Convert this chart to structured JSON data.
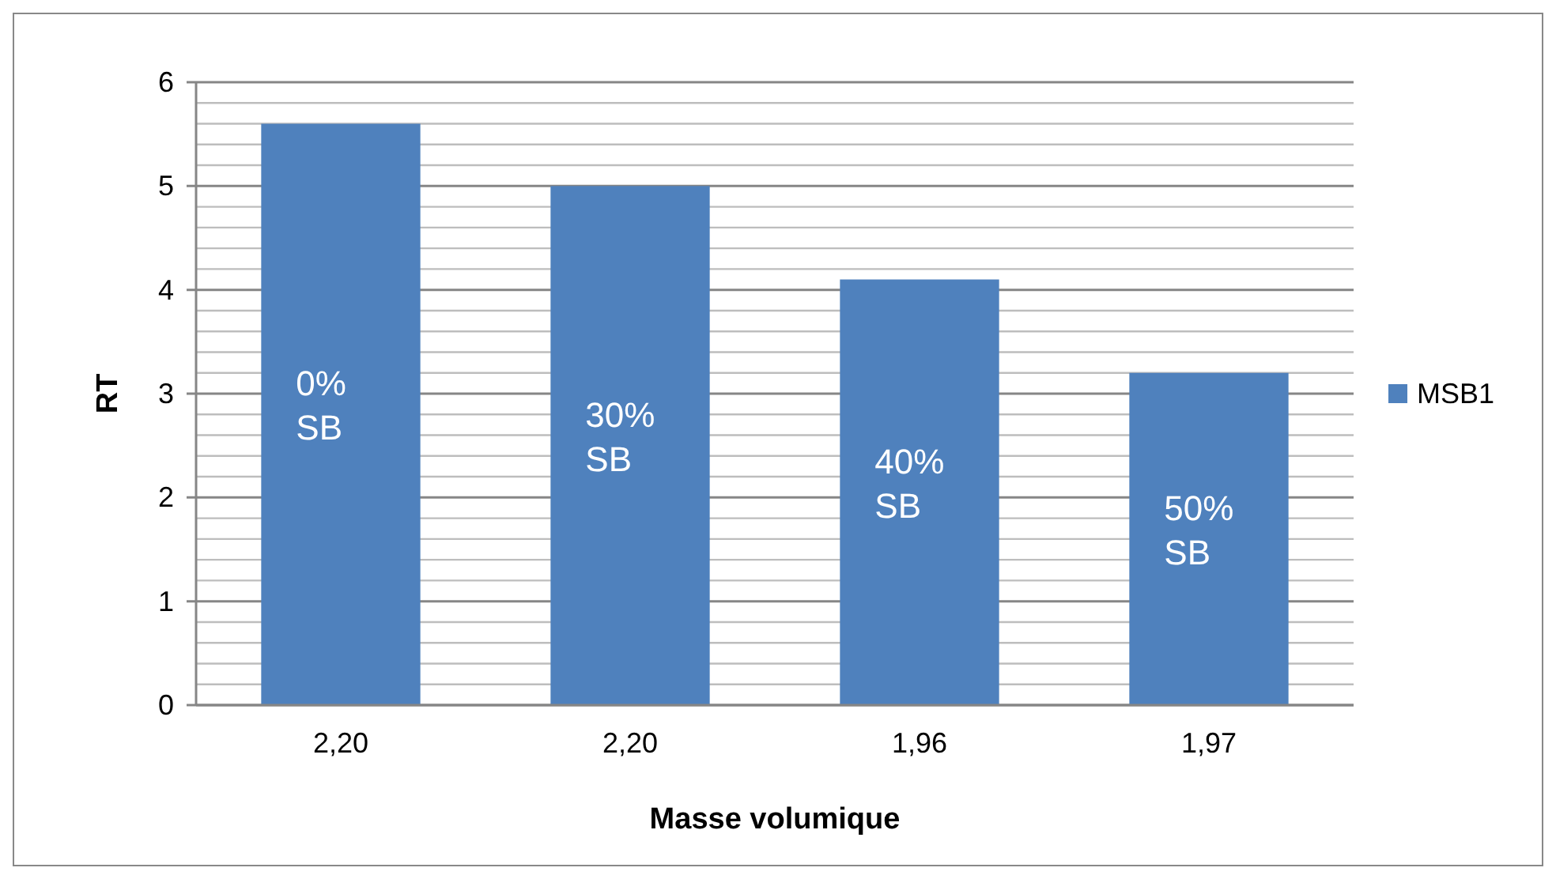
{
  "chart_data": {
    "type": "bar",
    "xlabel": "Masse volumique",
    "ylabel": "RT",
    "categories": [
      "2,20",
      "2,20",
      "1,96",
      "1,97"
    ],
    "series": [
      {
        "name": "MSB1",
        "color": "#4f81bd",
        "values": [
          5.6,
          5.0,
          4.1,
          3.2
        ]
      }
    ],
    "ylim": [
      0,
      6
    ],
    "yticks": [
      0,
      {
        "value": 0.2,
        "label": null
      },
      {
        "value": 0.4,
        "label": null
      },
      {
        "value": 0.6,
        "label": null
      },
      {
        "value": 0.8,
        "label": null
      },
      1,
      {
        "value": 1.2,
        "label": null
      },
      {
        "value": 1.4,
        "label": null
      },
      {
        "value": 1.6,
        "label": null
      },
      {
        "value": 1.8,
        "label": null
      },
      2,
      {
        "value": 2.2,
        "label": null
      },
      {
        "value": 2.4,
        "label": null
      },
      {
        "value": 2.6,
        "label": null
      },
      {
        "value": 2.8,
        "label": null
      },
      3,
      {
        "value": 3.2,
        "label": null
      },
      {
        "value": 3.4,
        "label": null
      },
      {
        "value": 3.6,
        "label": null
      },
      {
        "value": 3.8,
        "label": null
      },
      4,
      {
        "value": 4.2,
        "label": null
      },
      {
        "value": 4.4,
        "label": null
      },
      {
        "value": 4.6,
        "label": null
      },
      {
        "value": 4.8,
        "label": null
      },
      5,
      {
        "value": 5.2,
        "label": null
      },
      {
        "value": 5.4,
        "label": null
      },
      {
        "value": 5.6,
        "label": null
      },
      {
        "value": 5.8,
        "label": null
      },
      6
    ],
    "grid": true,
    "legend": "right",
    "annotations": [
      "0% SB",
      "30% SB",
      "40% SB",
      "50% SB"
    ]
  }
}
